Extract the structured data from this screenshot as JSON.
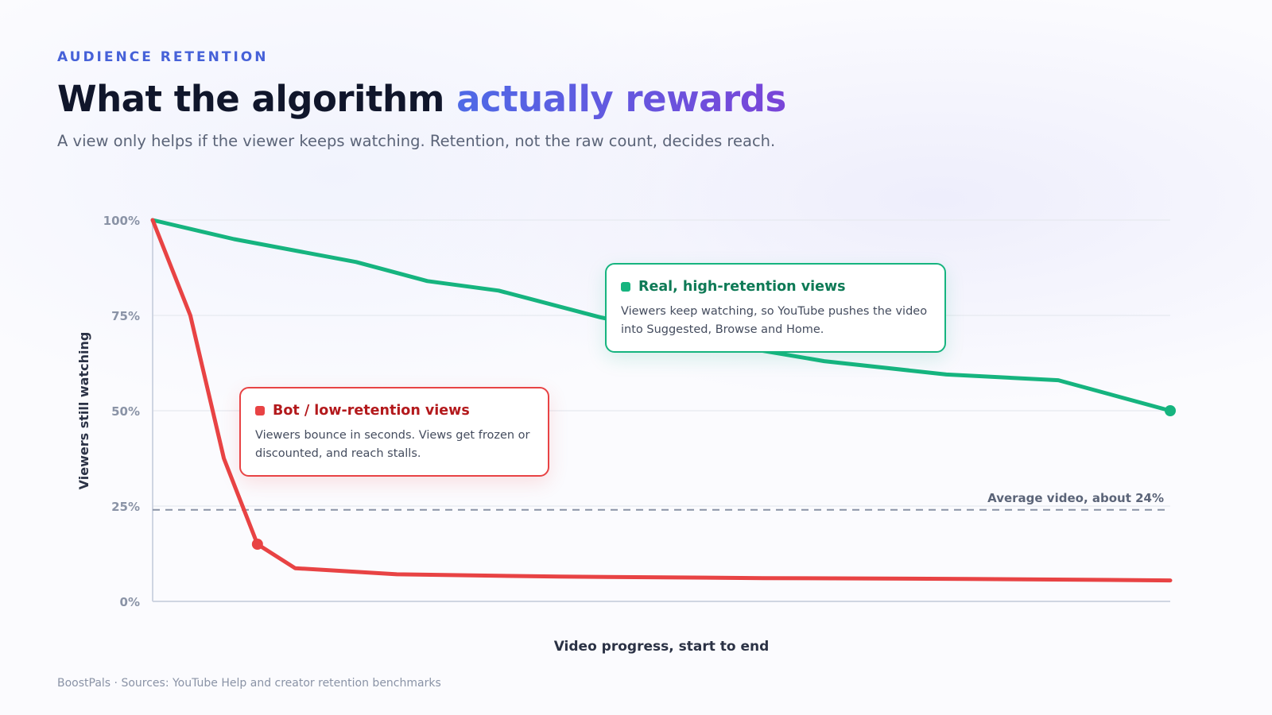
{
  "header": {
    "eyebrow": "AUDIENCE RETENTION",
    "title_main": "What the algorithm ",
    "title_accent": "actually rewards",
    "subtitle": "A view only helps if the viewer keeps watching. Retention, not the raw count, decides reach."
  },
  "callouts": {
    "real": {
      "title": "Real, high-retention views",
      "body": "Viewers keep watching, so YouTube pushes the video into Suggested, Browse and Home."
    },
    "bot": {
      "title": "Bot / low-retention views",
      "body": "Viewers bounce in seconds. Views get frozen or discounted, and reach stalls."
    }
  },
  "footer": "BoostPals · Sources: YouTube Help and creator retention benchmarks",
  "colors": {
    "real": "#16b47f",
    "bot": "#e84344",
    "reference": "#8a93a6",
    "accent": "#4661d8"
  },
  "chart_data": {
    "type": "line",
    "xlabel": "Video progress, start to end",
    "ylabel": "Viewers still watching",
    "ylim": [
      0,
      100
    ],
    "xlim": [
      0,
      100
    ],
    "yticks": [
      0,
      25,
      50,
      75,
      100
    ],
    "ytick_labels": [
      "0%",
      "25%",
      "50%",
      "75%",
      "100%"
    ],
    "grid": true,
    "series": [
      {
        "key": "real",
        "x": [
          0,
          8,
          20,
          27,
          34,
          44,
          56,
          66,
          78,
          89,
          100
        ],
        "values": [
          100,
          95,
          89,
          84,
          81.5,
          74.5,
          67.5,
          63,
          59.5,
          58,
          50
        ],
        "endpoint_marker": "last"
      },
      {
        "key": "bot",
        "x": [
          0,
          3.7,
          7,
          10.3,
          14,
          24,
          40,
          60,
          80,
          100
        ],
        "values": [
          100,
          75,
          37.5,
          15,
          8.7,
          7.1,
          6.5,
          6.1,
          5.9,
          5.5
        ],
        "marker_index": 3
      }
    ],
    "reference_line": {
      "value": 24,
      "label": "Average video, about 24%"
    }
  }
}
